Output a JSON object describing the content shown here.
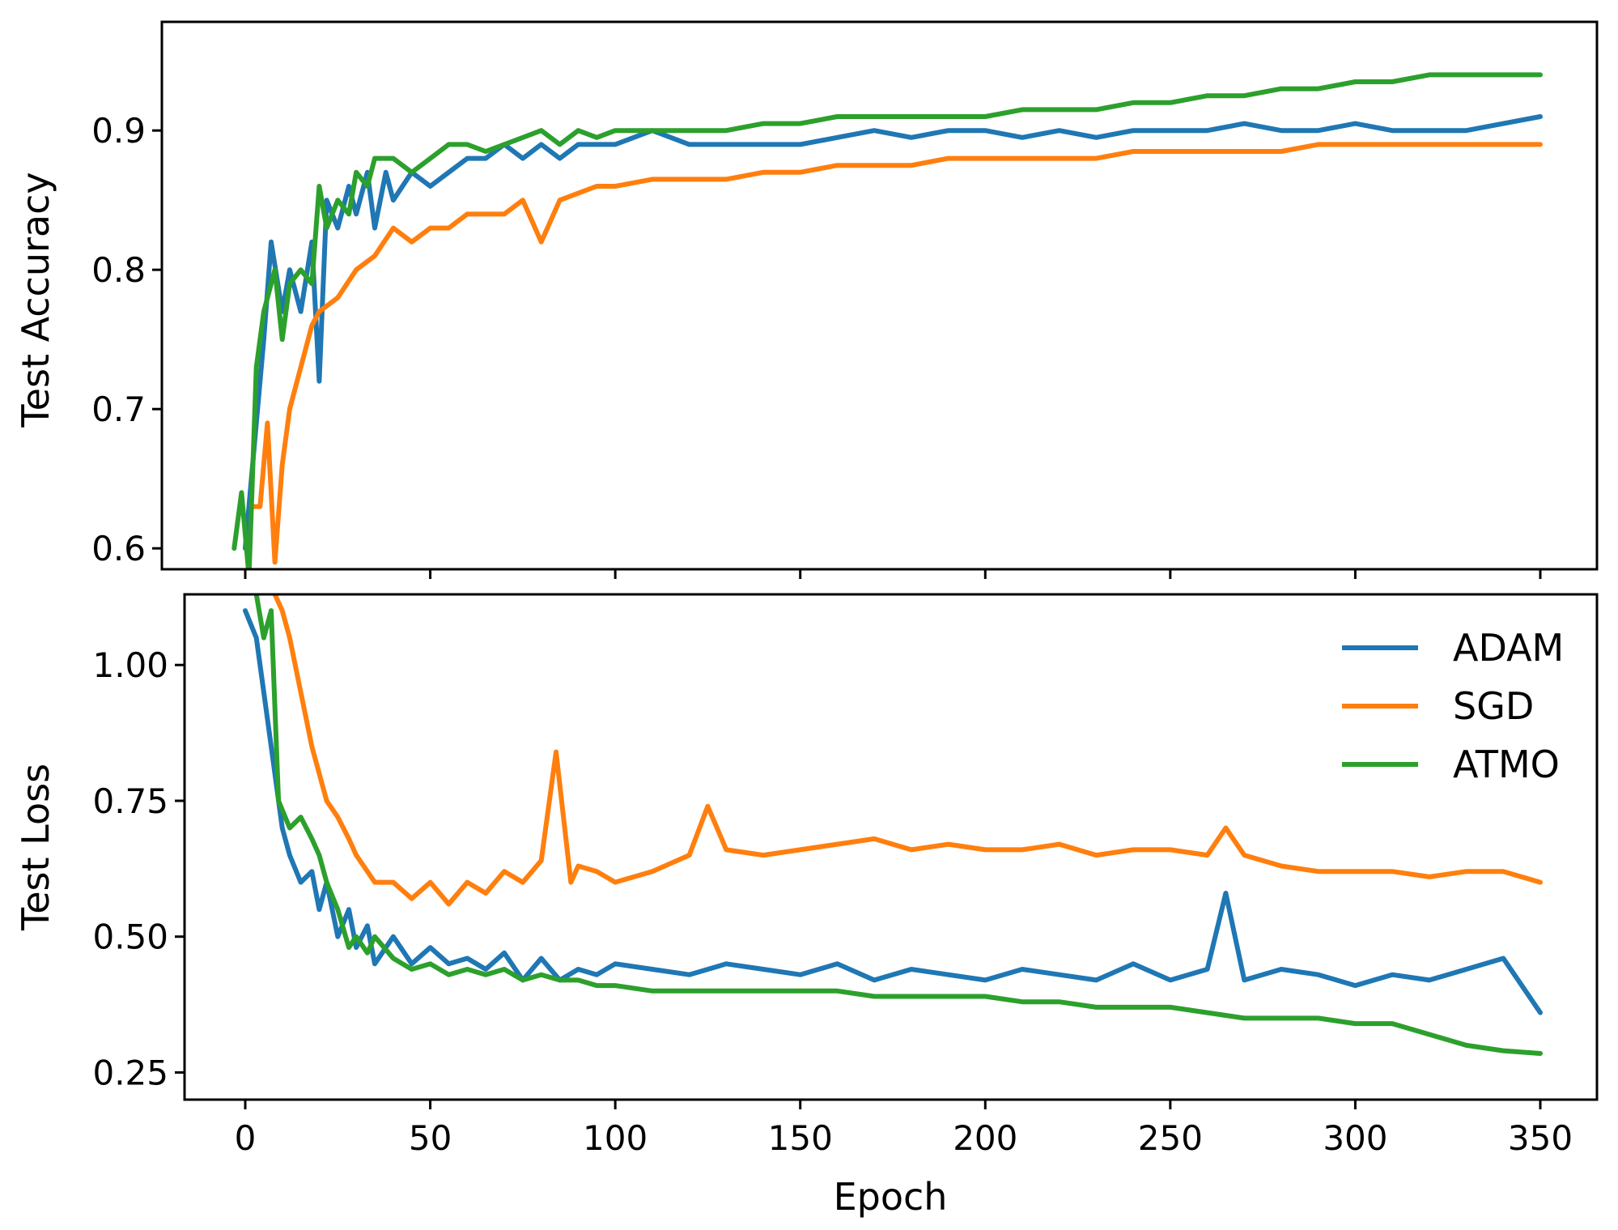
{
  "chart_data": [
    {
      "type": "line",
      "title": "",
      "xlabel": "",
      "ylabel": "Test Accuracy",
      "xlim": [
        -5,
        355
      ],
      "ylim": [
        0.585,
        0.978
      ],
      "xticks": [
        0,
        50,
        100,
        150,
        200,
        250,
        300,
        350
      ],
      "xtick_labels_visible": false,
      "yticks": [
        0.6,
        0.7,
        0.8,
        0.9
      ],
      "ytick_labels": [
        "0.6",
        "0.7",
        "0.8",
        "0.9"
      ],
      "grid": false,
      "legend": null,
      "series": [
        {
          "name": "ADAM",
          "color": "#1f77b4",
          "x": [
            0,
            2,
            5,
            7,
            10,
            12,
            15,
            18,
            20,
            22,
            25,
            28,
            30,
            33,
            35,
            38,
            40,
            45,
            50,
            55,
            60,
            65,
            70,
            75,
            80,
            85,
            90,
            95,
            100,
            110,
            120,
            130,
            140,
            150,
            160,
            170,
            180,
            190,
            200,
            210,
            220,
            230,
            240,
            250,
            260,
            270,
            280,
            290,
            300,
            310,
            320,
            330,
            340,
            350
          ],
          "y": [
            0.6,
            0.66,
            0.75,
            0.82,
            0.77,
            0.8,
            0.77,
            0.82,
            0.72,
            0.85,
            0.83,
            0.86,
            0.84,
            0.87,
            0.83,
            0.87,
            0.85,
            0.87,
            0.86,
            0.87,
            0.88,
            0.88,
            0.89,
            0.88,
            0.89,
            0.88,
            0.89,
            0.89,
            0.89,
            0.9,
            0.89,
            0.89,
            0.89,
            0.89,
            0.895,
            0.9,
            0.895,
            0.9,
            0.9,
            0.895,
            0.9,
            0.895,
            0.9,
            0.9,
            0.9,
            0.905,
            0.9,
            0.9,
            0.905,
            0.9,
            0.9,
            0.9,
            0.905,
            0.91
          ]
        },
        {
          "name": "SGD",
          "color": "#ff7f0e",
          "x": [
            2,
            4,
            6,
            8,
            10,
            12,
            15,
            18,
            20,
            25,
            30,
            35,
            40,
            45,
            50,
            55,
            60,
            65,
            70,
            75,
            80,
            85,
            90,
            95,
            100,
            110,
            120,
            130,
            140,
            150,
            160,
            170,
            180,
            190,
            200,
            210,
            220,
            230,
            240,
            250,
            260,
            270,
            280,
            290,
            300,
            310,
            320,
            330,
            340,
            350
          ],
          "y": [
            0.63,
            0.63,
            0.69,
            0.59,
            0.66,
            0.7,
            0.73,
            0.76,
            0.77,
            0.78,
            0.8,
            0.81,
            0.83,
            0.82,
            0.83,
            0.83,
            0.84,
            0.84,
            0.84,
            0.85,
            0.82,
            0.85,
            0.855,
            0.86,
            0.86,
            0.865,
            0.865,
            0.865,
            0.87,
            0.87,
            0.875,
            0.875,
            0.875,
            0.88,
            0.88,
            0.88,
            0.88,
            0.88,
            0.885,
            0.885,
            0.885,
            0.885,
            0.885,
            0.89,
            0.89,
            0.89,
            0.89,
            0.89,
            0.89,
            0.89
          ]
        },
        {
          "name": "ATMO",
          "color": "#2ca02c",
          "x": [
            -3,
            -1,
            1,
            3,
            5,
            8,
            10,
            12,
            15,
            18,
            20,
            22,
            25,
            28,
            30,
            33,
            35,
            40,
            45,
            50,
            55,
            60,
            65,
            70,
            75,
            80,
            85,
            90,
            95,
            100,
            110,
            120,
            130,
            140,
            150,
            160,
            170,
            180,
            190,
            200,
            210,
            220,
            230,
            240,
            250,
            260,
            270,
            280,
            290,
            300,
            310,
            320,
            330,
            340,
            350
          ],
          "y": [
            0.6,
            0.64,
            0.58,
            0.73,
            0.77,
            0.8,
            0.75,
            0.79,
            0.8,
            0.79,
            0.86,
            0.83,
            0.85,
            0.84,
            0.87,
            0.86,
            0.88,
            0.88,
            0.87,
            0.88,
            0.89,
            0.89,
            0.885,
            0.89,
            0.895,
            0.9,
            0.89,
            0.9,
            0.895,
            0.9,
            0.9,
            0.9,
            0.9,
            0.905,
            0.905,
            0.91,
            0.91,
            0.91,
            0.91,
            0.91,
            0.915,
            0.915,
            0.915,
            0.92,
            0.92,
            0.925,
            0.925,
            0.93,
            0.93,
            0.935,
            0.935,
            0.94,
            0.94,
            0.94,
            0.94
          ]
        }
      ]
    },
    {
      "type": "line",
      "title": "",
      "xlabel": "Epoch",
      "ylabel": "Test Loss",
      "xlim": [
        -5,
        355
      ],
      "ylim": [
        0.2,
        1.13
      ],
      "xticks": [
        0,
        50,
        100,
        150,
        200,
        250,
        300,
        350
      ],
      "xtick_labels": [
        "0",
        "50",
        "100",
        "150",
        "200",
        "250",
        "300",
        "350"
      ],
      "yticks": [
        0.25,
        0.5,
        0.75,
        1.0
      ],
      "ytick_labels": [
        "0.25",
        "0.50",
        "0.75",
        "1.00"
      ],
      "grid": false,
      "legend": {
        "placement": "top-right",
        "entries": [
          "ADAM",
          "SGD",
          "ATMO"
        ]
      },
      "series": [
        {
          "name": "ADAM",
          "color": "#1f77b4",
          "x": [
            0,
            3,
            5,
            8,
            10,
            12,
            15,
            18,
            20,
            22,
            25,
            28,
            30,
            33,
            35,
            40,
            45,
            50,
            55,
            60,
            65,
            70,
            75,
            80,
            85,
            90,
            95,
            100,
            110,
            120,
            130,
            140,
            150,
            160,
            170,
            180,
            190,
            200,
            210,
            220,
            230,
            240,
            250,
            260,
            265,
            270,
            280,
            290,
            300,
            310,
            320,
            330,
            340,
            350
          ],
          "y": [
            1.1,
            1.05,
            0.95,
            0.8,
            0.7,
            0.65,
            0.6,
            0.62,
            0.55,
            0.6,
            0.5,
            0.55,
            0.48,
            0.52,
            0.45,
            0.5,
            0.45,
            0.48,
            0.45,
            0.46,
            0.44,
            0.47,
            0.42,
            0.46,
            0.42,
            0.44,
            0.43,
            0.45,
            0.44,
            0.43,
            0.45,
            0.44,
            0.43,
            0.45,
            0.42,
            0.44,
            0.43,
            0.42,
            0.44,
            0.43,
            0.42,
            0.45,
            0.42,
            0.44,
            0.58,
            0.42,
            0.44,
            0.43,
            0.41,
            0.43,
            0.42,
            0.44,
            0.46,
            0.36
          ]
        },
        {
          "name": "SGD",
          "color": "#ff7f0e",
          "x": [
            8,
            10,
            12,
            15,
            18,
            20,
            22,
            25,
            28,
            30,
            33,
            35,
            40,
            45,
            50,
            55,
            60,
            65,
            70,
            75,
            80,
            84,
            88,
            90,
            95,
            100,
            110,
            120,
            125,
            130,
            140,
            150,
            160,
            170,
            180,
            190,
            200,
            210,
            220,
            230,
            240,
            250,
            260,
            265,
            270,
            275,
            280,
            290,
            300,
            310,
            320,
            330,
            340,
            350
          ],
          "y": [
            1.13,
            1.1,
            1.05,
            0.95,
            0.85,
            0.8,
            0.75,
            0.72,
            0.68,
            0.65,
            0.62,
            0.6,
            0.6,
            0.57,
            0.6,
            0.56,
            0.6,
            0.58,
            0.62,
            0.6,
            0.64,
            0.84,
            0.6,
            0.63,
            0.62,
            0.6,
            0.62,
            0.65,
            0.74,
            0.66,
            0.65,
            0.66,
            0.67,
            0.68,
            0.66,
            0.67,
            0.66,
            0.66,
            0.67,
            0.65,
            0.66,
            0.66,
            0.65,
            0.7,
            0.65,
            0.64,
            0.63,
            0.62,
            0.62,
            0.62,
            0.61,
            0.62,
            0.62,
            0.6
          ]
        },
        {
          "name": "ATMO",
          "color": "#2ca02c",
          "x": [
            3,
            5,
            7,
            9,
            12,
            15,
            18,
            20,
            22,
            25,
            28,
            30,
            33,
            35,
            40,
            45,
            50,
            55,
            60,
            65,
            70,
            75,
            80,
            85,
            90,
            95,
            100,
            110,
            120,
            130,
            140,
            150,
            160,
            170,
            180,
            190,
            200,
            210,
            220,
            230,
            240,
            250,
            260,
            270,
            280,
            290,
            300,
            310,
            320,
            330,
            340,
            350
          ],
          "y": [
            1.13,
            1.05,
            1.1,
            0.75,
            0.7,
            0.72,
            0.68,
            0.65,
            0.6,
            0.55,
            0.48,
            0.5,
            0.47,
            0.5,
            0.46,
            0.44,
            0.45,
            0.43,
            0.44,
            0.43,
            0.44,
            0.42,
            0.43,
            0.42,
            0.42,
            0.41,
            0.41,
            0.4,
            0.4,
            0.4,
            0.4,
            0.4,
            0.4,
            0.39,
            0.39,
            0.39,
            0.39,
            0.38,
            0.38,
            0.37,
            0.37,
            0.37,
            0.36,
            0.35,
            0.35,
            0.35,
            0.34,
            0.34,
            0.32,
            0.3,
            0.29,
            0.285
          ]
        }
      ]
    }
  ]
}
